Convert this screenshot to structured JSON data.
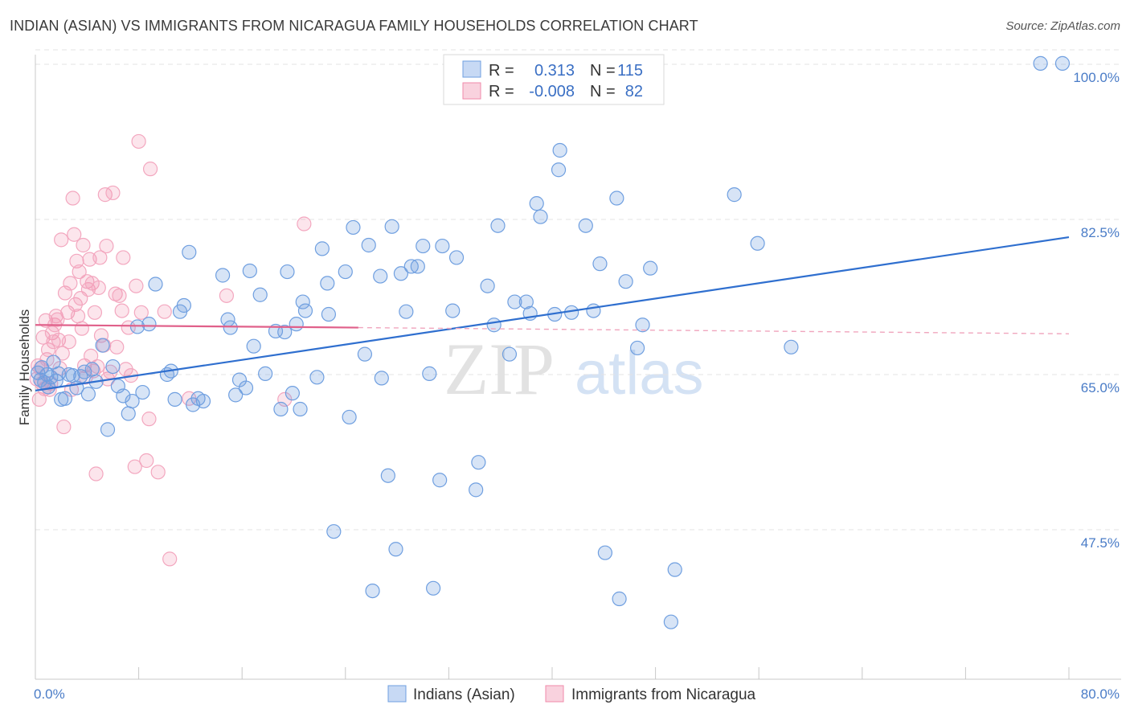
{
  "header": {
    "title": "INDIAN (ASIAN) VS IMMIGRANTS FROM NICARAGUA FAMILY HOUSEHOLDS CORRELATION CHART",
    "source": "Source: ZipAtlas.com"
  },
  "watermark": {
    "zip": "ZIP",
    "atlas": "atlas"
  },
  "legend_box": {
    "rows": [
      {
        "r_label": "R =",
        "r_value": "0.313",
        "n_label": "N =",
        "n_value": "115",
        "color": "#6f9fe0"
      },
      {
        "r_label": "R =",
        "r_value": "-0.008",
        "n_label": "N =",
        "n_value": "82",
        "color": "#f08aaa"
      }
    ]
  },
  "bottom_legend": {
    "items": [
      {
        "label": "Indians (Asian)",
        "color": "#6f9fe0"
      },
      {
        "label": "Immigrants from Nicaragua",
        "color": "#f08aaa"
      }
    ]
  },
  "chart_data": {
    "type": "scatter",
    "title": "INDIAN (ASIAN) VS IMMIGRANTS FROM NICARAGUA FAMILY HOUSEHOLDS CORRELATION CHART",
    "xlabel": "",
    "ylabel": "Family Households",
    "xlim": [
      0,
      80
    ],
    "ylim": [
      33,
      102
    ],
    "x_tick_labels": [
      "0.0%",
      "80.0%"
    ],
    "y_ticks": [
      47.5,
      65.0,
      82.5,
      100.0
    ],
    "y_tick_labels": [
      "47.5%",
      "65.0%",
      "82.5%",
      "100.0%"
    ],
    "grid": "horizontal dashed",
    "legend_position": "top-center",
    "series": [
      {
        "name": "Indians (Asian)",
        "color": "#6f9fe0",
        "trend": {
          "x": [
            0,
            80
          ],
          "y": [
            63.2,
            80.5
          ]
        },
        "points": [
          [
            0.2,
            65.2
          ],
          [
            0.4,
            64.4
          ],
          [
            0.5,
            65.8
          ],
          [
            0.7,
            64.1
          ],
          [
            0.9,
            65.0
          ],
          [
            1.0,
            63.6
          ],
          [
            1.2,
            64.7
          ],
          [
            1.4,
            66.4
          ],
          [
            1.6,
            64.3
          ],
          [
            1.8,
            65.1
          ],
          [
            2.0,
            62.2
          ],
          [
            2.3,
            62.3
          ],
          [
            2.6,
            65.0
          ],
          [
            2.9,
            64.9
          ],
          [
            3.2,
            63.5
          ],
          [
            3.5,
            64.8
          ],
          [
            3.8,
            65.3
          ],
          [
            4.1,
            62.8
          ],
          [
            4.4,
            65.6
          ],
          [
            4.7,
            64.2
          ],
          [
            5.2,
            68.3
          ],
          [
            5.6,
            58.8
          ],
          [
            6.0,
            65.9
          ],
          [
            6.4,
            63.7
          ],
          [
            6.8,
            62.6
          ],
          [
            7.2,
            60.6
          ],
          [
            7.5,
            62.0
          ],
          [
            7.9,
            70.4
          ],
          [
            8.3,
            63.0
          ],
          [
            8.8,
            70.7
          ],
          [
            9.3,
            75.2
          ],
          [
            10.2,
            65.0
          ],
          [
            10.5,
            65.4
          ],
          [
            10.8,
            62.2
          ],
          [
            11.2,
            72.1
          ],
          [
            11.5,
            72.8
          ],
          [
            11.9,
            78.8
          ],
          [
            12.2,
            61.6
          ],
          [
            12.6,
            62.3
          ],
          [
            13.0,
            62.0
          ],
          [
            14.5,
            76.2
          ],
          [
            14.9,
            71.2
          ],
          [
            15.1,
            70.3
          ],
          [
            15.5,
            62.7
          ],
          [
            15.8,
            64.4
          ],
          [
            16.3,
            63.5
          ],
          [
            16.6,
            76.7
          ],
          [
            16.9,
            68.2
          ],
          [
            17.4,
            74.0
          ],
          [
            17.8,
            65.1
          ],
          [
            18.6,
            69.9
          ],
          [
            19.0,
            61.1
          ],
          [
            19.3,
            69.8
          ],
          [
            19.5,
            76.6
          ],
          [
            19.9,
            62.9
          ],
          [
            20.2,
            70.7
          ],
          [
            20.5,
            61.1
          ],
          [
            20.7,
            73.2
          ],
          [
            20.9,
            72.2
          ],
          [
            21.8,
            64.7
          ],
          [
            22.7,
            71.8
          ],
          [
            22.2,
            79.2
          ],
          [
            22.6,
            75.3
          ],
          [
            23.1,
            47.3
          ],
          [
            24.0,
            76.6
          ],
          [
            24.3,
            60.2
          ],
          [
            24.6,
            81.6
          ],
          [
            25.5,
            67.3
          ],
          [
            25.8,
            79.6
          ],
          [
            26.1,
            40.6
          ],
          [
            26.7,
            76.1
          ],
          [
            26.8,
            64.6
          ],
          [
            27.3,
            53.6
          ],
          [
            27.6,
            81.7
          ],
          [
            27.9,
            45.3
          ],
          [
            28.3,
            76.4
          ],
          [
            28.7,
            72.1
          ],
          [
            29.1,
            77.2
          ],
          [
            29.6,
            77.2
          ],
          [
            30.0,
            79.5
          ],
          [
            30.5,
            65.1
          ],
          [
            30.8,
            40.9
          ],
          [
            31.3,
            53.1
          ],
          [
            31.5,
            79.5
          ],
          [
            32.3,
            72.2
          ],
          [
            32.6,
            78.2
          ],
          [
            34.1,
            52.0
          ],
          [
            34.3,
            55.1
          ],
          [
            35.0,
            75.0
          ],
          [
            35.5,
            70.6
          ],
          [
            35.8,
            81.8
          ],
          [
            36.7,
            67.3
          ],
          [
            37.1,
            73.2
          ],
          [
            38.0,
            73.2
          ],
          [
            38.3,
            71.9
          ],
          [
            38.8,
            84.3
          ],
          [
            39.1,
            82.8
          ],
          [
            40.2,
            71.8
          ],
          [
            40.6,
            90.3
          ],
          [
            40.5,
            88.1
          ],
          [
            41.5,
            72.0
          ],
          [
            42.6,
            81.8
          ],
          [
            43.2,
            72.2
          ],
          [
            43.7,
            77.5
          ],
          [
            44.1,
            44.9
          ],
          [
            45.0,
            84.9
          ],
          [
            45.2,
            39.7
          ],
          [
            45.7,
            75.5
          ],
          [
            46.6,
            68.0
          ],
          [
            47.0,
            70.6
          ],
          [
            47.6,
            77.0
          ],
          [
            49.2,
            37.1
          ],
          [
            49.5,
            43.0
          ],
          [
            54.1,
            85.3
          ],
          [
            55.9,
            79.8
          ],
          [
            58.5,
            68.1
          ],
          [
            77.8,
            100.1
          ],
          [
            79.5,
            100.1
          ]
        ]
      },
      {
        "name": "Immigrants from Nicaragua",
        "color": "#f08aaa",
        "trend": {
          "x": [
            0,
            25
          ],
          "y": [
            70.6,
            70.3
          ]
        },
        "trend_extended": {
          "x": [
            25,
            80
          ],
          "y": [
            70.3,
            69.6
          ]
        },
        "points": [
          [
            0.1,
            64.5
          ],
          [
            0.2,
            66.0
          ],
          [
            0.3,
            62.2
          ],
          [
            0.4,
            65.7
          ],
          [
            0.5,
            64.0
          ],
          [
            0.6,
            69.2
          ],
          [
            0.7,
            63.4
          ],
          [
            0.8,
            71.1
          ],
          [
            0.9,
            66.7
          ],
          [
            1.0,
            67.8
          ],
          [
            1.1,
            63.3
          ],
          [
            1.2,
            64.0
          ],
          [
            1.3,
            69.7
          ],
          [
            1.4,
            68.7
          ],
          [
            1.5,
            70.6
          ],
          [
            1.6,
            71.6
          ],
          [
            1.7,
            71.2
          ],
          [
            1.8,
            68.9
          ],
          [
            1.9,
            65.7
          ],
          [
            2.1,
            67.4
          ],
          [
            2.0,
            80.2
          ],
          [
            2.2,
            59.1
          ],
          [
            2.3,
            74.2
          ],
          [
            2.5,
            72.0
          ],
          [
            2.6,
            68.7
          ],
          [
            2.7,
            75.3
          ],
          [
            2.8,
            63.3
          ],
          [
            2.9,
            84.9
          ],
          [
            3.0,
            80.8
          ],
          [
            3.1,
            72.9
          ],
          [
            3.2,
            77.8
          ],
          [
            3.3,
            71.6
          ],
          [
            3.4,
            76.6
          ],
          [
            3.5,
            73.6
          ],
          [
            3.6,
            70.2
          ],
          [
            3.7,
            79.6
          ],
          [
            3.8,
            66.0
          ],
          [
            3.9,
            64.7
          ],
          [
            4.0,
            75.5
          ],
          [
            4.1,
            74.6
          ],
          [
            4.2,
            78.0
          ],
          [
            4.3,
            67.1
          ],
          [
            4.4,
            75.3
          ],
          [
            4.5,
            65.4
          ],
          [
            4.6,
            72.0
          ],
          [
            4.7,
            53.8
          ],
          [
            4.8,
            65.9
          ],
          [
            4.9,
            74.8
          ],
          [
            5.0,
            78.2
          ],
          [
            5.1,
            69.4
          ],
          [
            5.3,
            68.3
          ],
          [
            5.4,
            85.3
          ],
          [
            5.5,
            79.5
          ],
          [
            5.6,
            64.5
          ],
          [
            5.8,
            65.3
          ],
          [
            6.0,
            85.5
          ],
          [
            6.2,
            74.1
          ],
          [
            6.3,
            68.1
          ],
          [
            6.5,
            73.9
          ],
          [
            6.7,
            72.2
          ],
          [
            6.8,
            78.2
          ],
          [
            7.0,
            65.6
          ],
          [
            7.2,
            70.3
          ],
          [
            7.4,
            64.9
          ],
          [
            7.7,
            54.6
          ],
          [
            7.8,
            75.0
          ],
          [
            8.0,
            91.3
          ],
          [
            8.2,
            72.0
          ],
          [
            8.6,
            55.3
          ],
          [
            8.8,
            60.0
          ],
          [
            8.9,
            88.2
          ],
          [
            9.5,
            54.0
          ],
          [
            10.0,
            72.1
          ],
          [
            10.4,
            44.2
          ],
          [
            11.9,
            62.3
          ],
          [
            14.8,
            73.9
          ],
          [
            19.3,
            62.2
          ],
          [
            20.8,
            82.0
          ]
        ]
      }
    ]
  }
}
